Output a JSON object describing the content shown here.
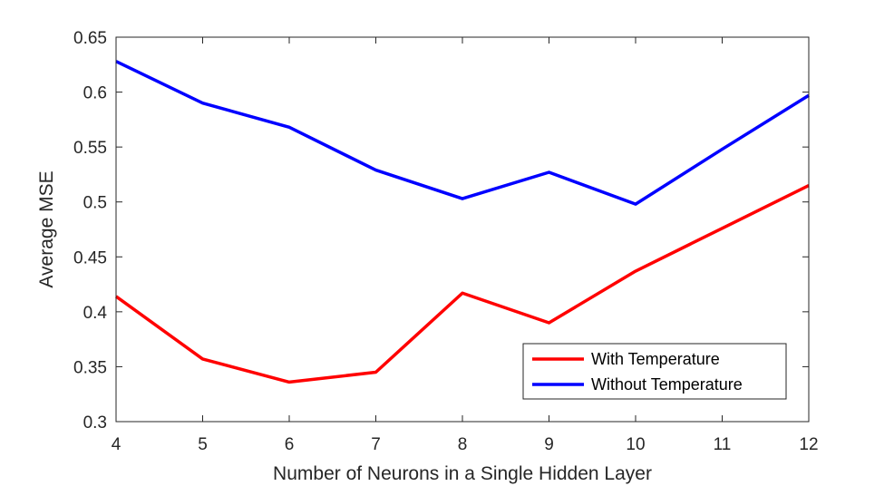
{
  "chart_data": {
    "type": "line",
    "title": "",
    "xlabel": "Number of Neurons in a Single Hidden Layer",
    "ylabel": "Average MSE",
    "x": [
      4,
      5,
      6,
      7,
      8,
      9,
      10,
      11,
      12
    ],
    "xlim": [
      4,
      12
    ],
    "ylim": [
      0.3,
      0.65
    ],
    "xticks": [
      "4",
      "5",
      "6",
      "7",
      "8",
      "9",
      "10",
      "11",
      "12"
    ],
    "yticks": [
      "0.3",
      "0.35",
      "0.4",
      "0.45",
      "0.5",
      "0.55",
      "0.6",
      "0.65"
    ],
    "grid": false,
    "legend_position": "bottom-right",
    "series": [
      {
        "name": "With Temperature",
        "color": "#ff0000",
        "values": [
          0.414,
          0.357,
          0.336,
          0.345,
          0.417,
          0.39,
          0.437,
          0.476,
          0.515
        ]
      },
      {
        "name": "Without Temperature",
        "color": "#0000ff",
        "values": [
          0.628,
          0.59,
          0.568,
          0.529,
          0.503,
          0.527,
          0.498,
          0.548,
          0.597
        ]
      }
    ]
  }
}
